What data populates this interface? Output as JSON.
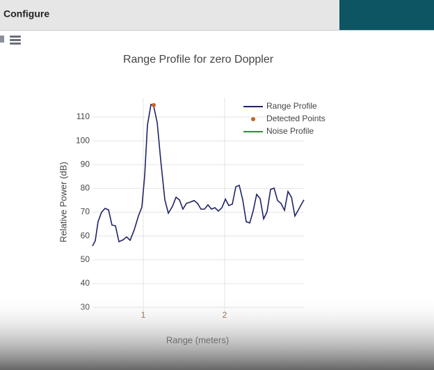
{
  "header": {
    "title": "Configure"
  },
  "chart_data": {
    "type": "line",
    "title": "Range Profile for zero Doppler",
    "xlabel": "Range (meters)",
    "ylabel": "Relative Power (dB)",
    "xlim": [
      0.376,
      2.974
    ],
    "ylim": [
      27.4,
      118.2
    ],
    "xticks": [
      1,
      2
    ],
    "yticks": [
      30,
      40,
      50,
      60,
      70,
      80,
      90,
      100,
      110
    ],
    "grid": true,
    "legend": "upper right",
    "series": [
      {
        "name": "Range Profile",
        "type": "line",
        "color": "#1f2266",
        "x": [
          0.376,
          0.41,
          0.444,
          0.487,
          0.53,
          0.573,
          0.615,
          0.658,
          0.701,
          0.752,
          0.795,
          0.838,
          0.889,
          0.94,
          0.983,
          1.017,
          1.051,
          1.094,
          1.128,
          1.171,
          1.214,
          1.265,
          1.308,
          1.359,
          1.402,
          1.444,
          1.487,
          1.53,
          1.581,
          1.624,
          1.667,
          1.709,
          1.752,
          1.795,
          1.838,
          1.88,
          1.923,
          1.966,
          2.009,
          2.051,
          2.094,
          2.137,
          2.179,
          2.222,
          2.265,
          2.308,
          2.35,
          2.393,
          2.436,
          2.479,
          2.521,
          2.564,
          2.607,
          2.65,
          2.692,
          2.735,
          2.778,
          2.821,
          2.863,
          2.906,
          2.949,
          2.974
        ],
        "values": [
          55.8,
          58,
          66,
          70,
          71.6,
          71,
          64.6,
          64.3,
          57.6,
          58.4,
          59.6,
          58.2,
          62.6,
          68.4,
          72.2,
          85.4,
          106.5,
          115.3,
          114.5,
          107.7,
          91.9,
          75.2,
          69.6,
          72.5,
          76.3,
          75.2,
          71.3,
          73.7,
          74.3,
          74.9,
          73.7,
          71.3,
          71.3,
          73.1,
          71.3,
          71.9,
          70.5,
          71.9,
          75.5,
          72.8,
          73.4,
          80.7,
          81.3,
          75.2,
          66,
          65.5,
          70.5,
          77.5,
          75.7,
          67.2,
          70.2,
          79.6,
          80.1,
          74.9,
          73.7,
          70.8,
          78.7,
          76.3,
          68.4,
          71,
          73.7,
          75.2
        ]
      },
      {
        "name": "Detected Points",
        "type": "scatter",
        "color": "#c8641e",
        "x": [
          1.128
        ],
        "values": [
          115
        ]
      },
      {
        "name": "Noise Profile",
        "type": "line",
        "color": "#2e8b3a",
        "x": [],
        "values": []
      }
    ]
  }
}
